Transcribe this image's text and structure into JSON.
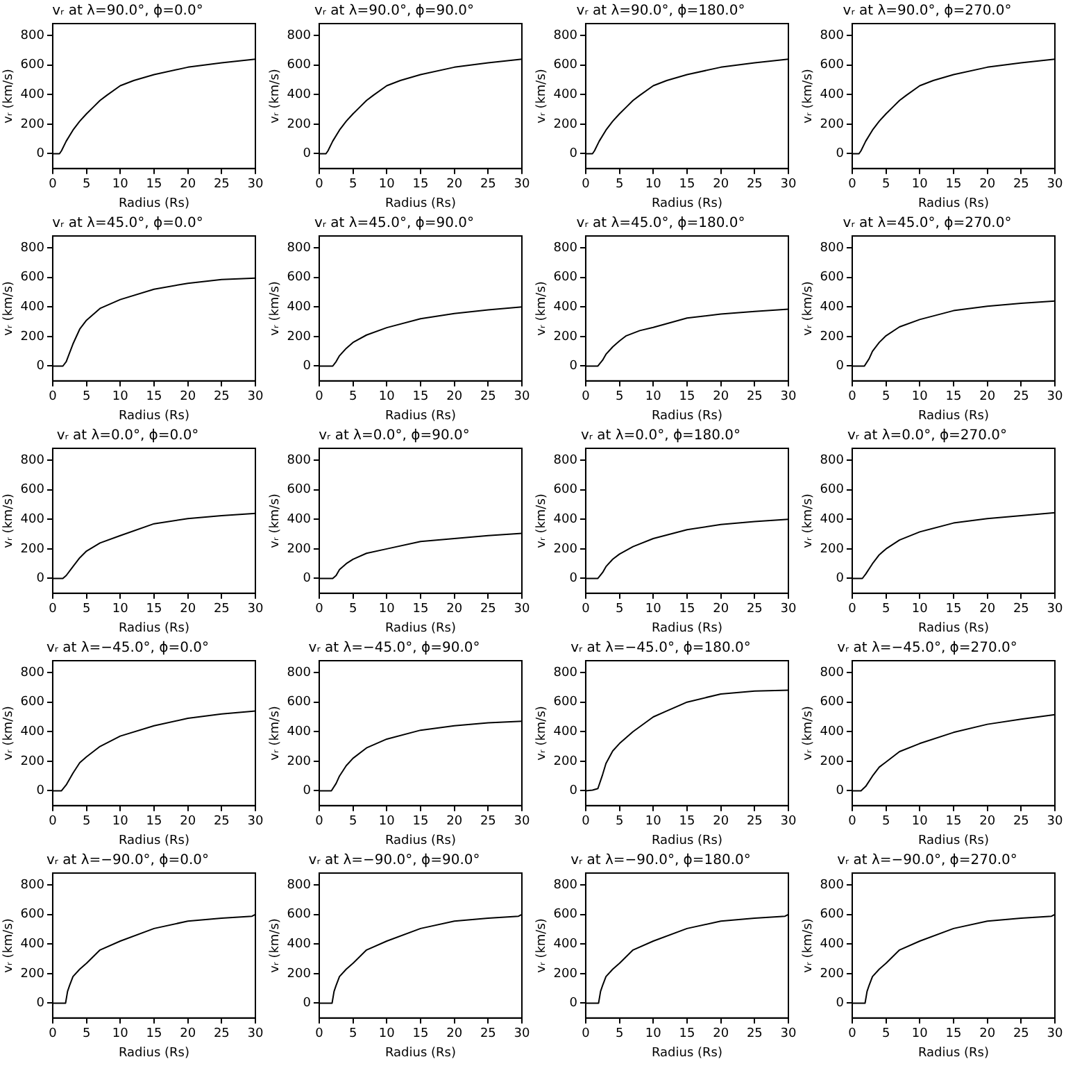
{
  "chart_data": [
    {
      "type": "line",
      "title": "vᵣ at λ=90.0°, ϕ=0.0°",
      "xlabel": "Radius (Rs)",
      "ylabel": "vᵣ (km/s)",
      "x": [
        0,
        1,
        1.3,
        2,
        3,
        4,
        5,
        6,
        7,
        8,
        10,
        12,
        15,
        20,
        25,
        30
      ],
      "values": [
        0,
        0,
        20,
        85,
        160,
        220,
        270,
        315,
        360,
        395,
        460,
        495,
        535,
        585,
        615,
        640
      ],
      "color": "#000000",
      "xlim": [
        0,
        30
      ],
      "ylim": [
        -100,
        880
      ],
      "xticks": [
        0,
        5,
        10,
        15,
        20,
        25,
        30
      ],
      "yticks": [
        0,
        200,
        400,
        600,
        800
      ],
      "grid": false,
      "marker": "none"
    },
    {
      "type": "line",
      "title": "vᵣ at λ=90.0°, ϕ=90.0°",
      "xlabel": "Radius (Rs)",
      "ylabel": "vᵣ (km/s)",
      "x": [
        0,
        1,
        1.3,
        2,
        3,
        4,
        5,
        6,
        7,
        8,
        10,
        12,
        15,
        20,
        25,
        30
      ],
      "values": [
        0,
        0,
        20,
        85,
        160,
        220,
        270,
        315,
        360,
        395,
        460,
        495,
        535,
        585,
        615,
        640
      ],
      "color": "#000000",
      "xlim": [
        0,
        30
      ],
      "ylim": [
        -100,
        880
      ],
      "xticks": [
        0,
        5,
        10,
        15,
        20,
        25,
        30
      ],
      "yticks": [
        0,
        200,
        400,
        600,
        800
      ],
      "grid": false,
      "marker": "none"
    },
    {
      "type": "line",
      "title": "vᵣ at λ=90.0°, ϕ=180.0°",
      "xlabel": "Radius (Rs)",
      "ylabel": "vᵣ (km/s)",
      "x": [
        0,
        1,
        1.3,
        2,
        3,
        4,
        5,
        6,
        7,
        8,
        10,
        12,
        15,
        20,
        25,
        30
      ],
      "values": [
        0,
        0,
        20,
        85,
        160,
        220,
        270,
        315,
        360,
        395,
        460,
        495,
        535,
        585,
        615,
        640
      ],
      "color": "#000000",
      "xlim": [
        0,
        30
      ],
      "ylim": [
        -100,
        880
      ],
      "xticks": [
        0,
        5,
        10,
        15,
        20,
        25,
        30
      ],
      "yticks": [
        0,
        200,
        400,
        600,
        800
      ],
      "grid": false,
      "marker": "none"
    },
    {
      "type": "line",
      "title": "vᵣ at λ=90.0°, ϕ=270.0°",
      "xlabel": "Radius (Rs)",
      "ylabel": "vᵣ (km/s)",
      "x": [
        0,
        1,
        1.3,
        2,
        3,
        4,
        5,
        6,
        7,
        8,
        10,
        12,
        15,
        20,
        25,
        30
      ],
      "values": [
        0,
        0,
        20,
        85,
        160,
        220,
        270,
        315,
        360,
        395,
        460,
        495,
        535,
        585,
        615,
        640
      ],
      "color": "#000000",
      "xlim": [
        0,
        30
      ],
      "ylim": [
        -100,
        880
      ],
      "xticks": [
        0,
        5,
        10,
        15,
        20,
        25,
        30
      ],
      "yticks": [
        0,
        200,
        400,
        600,
        800
      ],
      "grid": false,
      "marker": "none"
    },
    {
      "type": "line",
      "title": "vᵣ at λ=45.0°, ϕ=0.0°",
      "xlabel": "Radius (Rs)",
      "ylabel": "vᵣ (km/s)",
      "x": [
        0,
        1.5,
        2,
        3,
        4,
        5,
        7,
        10,
        15,
        20,
        25,
        30
      ],
      "values": [
        0,
        0,
        30,
        150,
        250,
        310,
        390,
        450,
        520,
        560,
        585,
        595
      ],
      "color": "#000000",
      "xlim": [
        0,
        30
      ],
      "ylim": [
        -100,
        880
      ],
      "xticks": [
        0,
        5,
        10,
        15,
        20,
        25,
        30
      ],
      "yticks": [
        0,
        200,
        400,
        600,
        800
      ],
      "grid": false,
      "marker": "none"
    },
    {
      "type": "line",
      "title": "vᵣ at λ=45.0°, ϕ=90.0°",
      "xlabel": "Radius (Rs)",
      "ylabel": "vᵣ (km/s)",
      "x": [
        0,
        2,
        2.5,
        3,
        4,
        5,
        7,
        10,
        15,
        20,
        25,
        30
      ],
      "values": [
        0,
        0,
        30,
        70,
        120,
        160,
        210,
        260,
        320,
        355,
        380,
        400
      ],
      "color": "#000000",
      "xlim": [
        0,
        30
      ],
      "ylim": [
        -100,
        880
      ],
      "xticks": [
        0,
        5,
        10,
        15,
        20,
        25,
        30
      ],
      "yticks": [
        0,
        200,
        400,
        600,
        800
      ],
      "grid": false,
      "marker": "none"
    },
    {
      "type": "line",
      "title": "vᵣ at λ=45.0°, ϕ=180.0°",
      "xlabel": "Radius (Rs)",
      "ylabel": "vᵣ (km/s)",
      "x": [
        0,
        1.8,
        2.5,
        3,
        4,
        5,
        6,
        8,
        10,
        15,
        20,
        25,
        30
      ],
      "values": [
        0,
        0,
        40,
        80,
        130,
        170,
        205,
        240,
        262,
        325,
        352,
        370,
        385
      ],
      "color": "#000000",
      "xlim": [
        0,
        30
      ],
      "ylim": [
        -100,
        880
      ],
      "xticks": [
        0,
        5,
        10,
        15,
        20,
        25,
        30
      ],
      "yticks": [
        0,
        200,
        400,
        600,
        800
      ],
      "grid": false,
      "marker": "none"
    },
    {
      "type": "line",
      "title": "vᵣ at λ=45.0°, ϕ=270.0°",
      "xlabel": "Radius (Rs)",
      "ylabel": "vᵣ (km/s)",
      "x": [
        0,
        1.8,
        2.5,
        3,
        4,
        5,
        7,
        10,
        15,
        20,
        25,
        30
      ],
      "values": [
        0,
        0,
        50,
        100,
        160,
        205,
        265,
        315,
        375,
        405,
        425,
        440
      ],
      "color": "#000000",
      "xlim": [
        0,
        30
      ],
      "ylim": [
        -100,
        880
      ],
      "xticks": [
        0,
        5,
        10,
        15,
        20,
        25,
        30
      ],
      "yticks": [
        0,
        200,
        400,
        600,
        800
      ],
      "grid": false,
      "marker": "none"
    },
    {
      "type": "line",
      "title": "vᵣ at λ=0.0°, ϕ=0.0°",
      "xlabel": "Radius (Rs)",
      "ylabel": "vᵣ (km/s)",
      "x": [
        0,
        1.5,
        2,
        3,
        4,
        5,
        7,
        10,
        15,
        20,
        25,
        30
      ],
      "values": [
        0,
        0,
        20,
        80,
        140,
        185,
        240,
        290,
        370,
        405,
        425,
        440
      ],
      "color": "#000000",
      "xlim": [
        0,
        30
      ],
      "ylim": [
        -100,
        880
      ],
      "xticks": [
        0,
        5,
        10,
        15,
        20,
        25,
        30
      ],
      "yticks": [
        0,
        200,
        400,
        600,
        800
      ],
      "grid": false,
      "marker": "none"
    },
    {
      "type": "line",
      "title": "vᵣ at λ=0.0°, ϕ=90.0°",
      "xlabel": "Radius (Rs)",
      "ylabel": "vᵣ (km/s)",
      "x": [
        0,
        2,
        2.5,
        3,
        4,
        5,
        7,
        10,
        15,
        20,
        25,
        30
      ],
      "values": [
        0,
        0,
        20,
        60,
        100,
        130,
        170,
        200,
        250,
        270,
        290,
        305
      ],
      "color": "#000000",
      "xlim": [
        0,
        30
      ],
      "ylim": [
        -100,
        880
      ],
      "xticks": [
        0,
        5,
        10,
        15,
        20,
        25,
        30
      ],
      "yticks": [
        0,
        200,
        400,
        600,
        800
      ],
      "grid": false,
      "marker": "none"
    },
    {
      "type": "line",
      "title": "vᵣ at λ=0.0°, ϕ=180.0°",
      "xlabel": "Radius (Rs)",
      "ylabel": "vᵣ (km/s)",
      "x": [
        0,
        1.8,
        2.5,
        3,
        4,
        5,
        7,
        10,
        15,
        20,
        25,
        30
      ],
      "values": [
        0,
        0,
        40,
        80,
        130,
        165,
        215,
        270,
        330,
        365,
        385,
        400
      ],
      "color": "#000000",
      "xlim": [
        0,
        30
      ],
      "ylim": [
        -100,
        880
      ],
      "xticks": [
        0,
        5,
        10,
        15,
        20,
        25,
        30
      ],
      "yticks": [
        0,
        200,
        400,
        600,
        800
      ],
      "grid": false,
      "marker": "none"
    },
    {
      "type": "line",
      "title": "vᵣ at λ=0.0°, ϕ=270.0°",
      "xlabel": "Radius (Rs)",
      "ylabel": "vᵣ (km/s)",
      "x": [
        0,
        1.5,
        2,
        3,
        4,
        5,
        7,
        10,
        15,
        20,
        25,
        30
      ],
      "values": [
        0,
        0,
        30,
        100,
        160,
        200,
        260,
        315,
        375,
        405,
        425,
        445
      ],
      "color": "#000000",
      "xlim": [
        0,
        30
      ],
      "ylim": [
        -100,
        880
      ],
      "xticks": [
        0,
        5,
        10,
        15,
        20,
        25,
        30
      ],
      "yticks": [
        0,
        200,
        400,
        600,
        800
      ],
      "grid": false,
      "marker": "none"
    },
    {
      "type": "line",
      "title": "vᵣ at λ=−45.0°, ϕ=0.0°",
      "xlabel": "Radius (Rs)",
      "ylabel": "vᵣ (km/s)",
      "x": [
        0,
        1.3,
        2,
        3,
        4,
        5,
        7,
        10,
        15,
        20,
        25,
        30
      ],
      "values": [
        0,
        0,
        40,
        120,
        190,
        230,
        300,
        370,
        440,
        490,
        520,
        540
      ],
      "color": "#000000",
      "xlim": [
        0,
        30
      ],
      "ylim": [
        -100,
        880
      ],
      "xticks": [
        0,
        5,
        10,
        15,
        20,
        25,
        30
      ],
      "yticks": [
        0,
        200,
        400,
        600,
        800
      ],
      "grid": false,
      "marker": "none"
    },
    {
      "type": "line",
      "title": "vᵣ at λ=−45.0°, ϕ=90.0°",
      "xlabel": "Radius (Rs)",
      "ylabel": "vᵣ (km/s)",
      "x": [
        0,
        1.8,
        2.5,
        3,
        4,
        5,
        7,
        10,
        15,
        20,
        25,
        30
      ],
      "values": [
        0,
        0,
        50,
        100,
        170,
        220,
        290,
        350,
        410,
        440,
        460,
        470
      ],
      "color": "#000000",
      "xlim": [
        0,
        30
      ],
      "ylim": [
        -100,
        880
      ],
      "xticks": [
        0,
        5,
        10,
        15,
        20,
        25,
        30
      ],
      "yticks": [
        0,
        200,
        400,
        600,
        800
      ],
      "grid": false,
      "marker": "none"
    },
    {
      "type": "line",
      "title": "vᵣ at λ=−45.0°, ϕ=180.0°",
      "xlabel": "Radius (Rs)",
      "ylabel": "vᵣ (km/s)",
      "x": [
        0,
        1,
        1.8,
        2.5,
        3,
        4,
        5,
        7,
        10,
        12,
        15,
        20,
        25,
        30
      ],
      "values": [
        0,
        5,
        15,
        110,
        185,
        270,
        320,
        400,
        500,
        540,
        600,
        655,
        675,
        680
      ],
      "color": "#000000",
      "xlim": [
        0,
        30
      ],
      "ylim": [
        -100,
        880
      ],
      "xticks": [
        0,
        5,
        10,
        15,
        20,
        25,
        30
      ],
      "yticks": [
        0,
        200,
        400,
        600,
        800
      ],
      "grid": false,
      "marker": "none"
    },
    {
      "type": "line",
      "title": "vᵣ at λ=−45.0°, ϕ=270.0°",
      "xlabel": "Radius (Rs)",
      "ylabel": "vᵣ (km/s)",
      "x": [
        0,
        1.3,
        2,
        3,
        4,
        5,
        7,
        10,
        15,
        20,
        25,
        30
      ],
      "values": [
        0,
        0,
        30,
        100,
        160,
        195,
        265,
        320,
        395,
        450,
        485,
        515
      ],
      "color": "#000000",
      "xlim": [
        0,
        30
      ],
      "ylim": [
        -100,
        880
      ],
      "xticks": [
        0,
        5,
        10,
        15,
        20,
        25,
        30
      ],
      "yticks": [
        0,
        200,
        400,
        600,
        800
      ],
      "grid": false,
      "marker": "none"
    },
    {
      "type": "line",
      "title": "vᵣ at λ=−90.0°, ϕ=0.0°",
      "xlabel": "Radius (Rs)",
      "ylabel": "vᵣ (km/s)",
      "x": [
        0,
        1.9,
        2.2,
        2.5,
        3,
        4,
        5,
        7,
        10,
        15,
        20,
        25,
        29.5,
        30
      ],
      "values": [
        0,
        0,
        80,
        120,
        180,
        230,
        270,
        360,
        420,
        505,
        555,
        575,
        588,
        600
      ],
      "color": "#000000",
      "xlim": [
        0,
        30
      ],
      "ylim": [
        -100,
        880
      ],
      "xticks": [
        0,
        5,
        10,
        15,
        20,
        25,
        30
      ],
      "yticks": [
        0,
        200,
        400,
        600,
        800
      ],
      "grid": false,
      "marker": "none"
    },
    {
      "type": "line",
      "title": "vᵣ at λ=−90.0°, ϕ=90.0°",
      "xlabel": "Radius (Rs)",
      "ylabel": "vᵣ (km/s)",
      "x": [
        0,
        1.9,
        2.2,
        2.5,
        3,
        4,
        5,
        7,
        10,
        15,
        20,
        25,
        29.5,
        30
      ],
      "values": [
        0,
        0,
        80,
        120,
        180,
        230,
        270,
        360,
        420,
        505,
        555,
        575,
        588,
        600
      ],
      "color": "#000000",
      "xlim": [
        0,
        30
      ],
      "ylim": [
        -100,
        880
      ],
      "xticks": [
        0,
        5,
        10,
        15,
        20,
        25,
        30
      ],
      "yticks": [
        0,
        200,
        400,
        600,
        800
      ],
      "grid": false,
      "marker": "none"
    },
    {
      "type": "line",
      "title": "vᵣ at λ=−90.0°, ϕ=180.0°",
      "xlabel": "Radius (Rs)",
      "ylabel": "vᵣ (km/s)",
      "x": [
        0,
        1.9,
        2.2,
        2.5,
        3,
        4,
        5,
        7,
        10,
        15,
        20,
        25,
        29.5,
        30
      ],
      "values": [
        0,
        0,
        80,
        120,
        180,
        230,
        270,
        360,
        420,
        505,
        555,
        575,
        588,
        600
      ],
      "color": "#000000",
      "xlim": [
        0,
        30
      ],
      "ylim": [
        -100,
        880
      ],
      "xticks": [
        0,
        5,
        10,
        15,
        20,
        25,
        30
      ],
      "yticks": [
        0,
        200,
        400,
        600,
        800
      ],
      "grid": false,
      "marker": "none"
    },
    {
      "type": "line",
      "title": "vᵣ at λ=−90.0°, ϕ=270.0°",
      "xlabel": "Radius (Rs)",
      "ylabel": "vᵣ (km/s)",
      "x": [
        0,
        1.9,
        2.2,
        2.5,
        3,
        4,
        5,
        7,
        10,
        15,
        20,
        25,
        29.5,
        30
      ],
      "values": [
        0,
        0,
        80,
        120,
        180,
        230,
        270,
        360,
        420,
        505,
        555,
        575,
        588,
        600
      ],
      "color": "#000000",
      "xlim": [
        0,
        30
      ],
      "ylim": [
        -100,
        880
      ],
      "xticks": [
        0,
        5,
        10,
        15,
        20,
        25,
        30
      ],
      "yticks": [
        0,
        200,
        400,
        600,
        800
      ],
      "grid": false,
      "marker": "none"
    }
  ]
}
